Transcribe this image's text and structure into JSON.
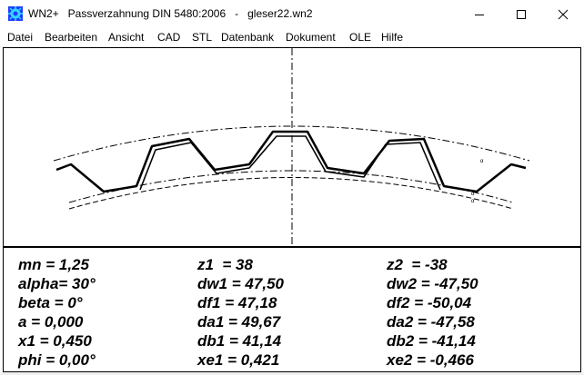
{
  "window": {
    "app_name": "WN2+",
    "title": "WN2+   Passverzahnung DIN 5480:2006   -   gleser22.wn2",
    "colors": {
      "icon_blue": "#1f3cff",
      "icon_cyan": "#33d6ff"
    }
  },
  "menu": {
    "items": [
      {
        "label": "Datei"
      },
      {
        "label": "Bearbeiten"
      },
      {
        "label": "Ansicht"
      },
      {
        "label": "CAD"
      },
      {
        "label": "STL"
      },
      {
        "label": "Datenbank"
      },
      {
        "label": "Dokument"
      },
      {
        "label": "OLE"
      },
      {
        "label": "Hilfe"
      }
    ]
  },
  "parameters": {
    "col1": [
      "mn = 1,25",
      "alpha= 30°",
      "beta = 0°",
      "a = 0,000",
      "x1 = 0,450",
      "phi = 0,00°"
    ],
    "col2": [
      "z1  = 38",
      "dw1 = 47,50",
      "df1 = 47,18",
      "da1 = 49,67",
      "db1 = 41,14",
      "xe1 = 0,421"
    ],
    "col3": [
      "z2  = -38",
      "dw2 = -47,50",
      "df2 = -50,04",
      "da2 = -47,58",
      "db2 = -41,14",
      "xe2 = -0,466"
    ]
  }
}
